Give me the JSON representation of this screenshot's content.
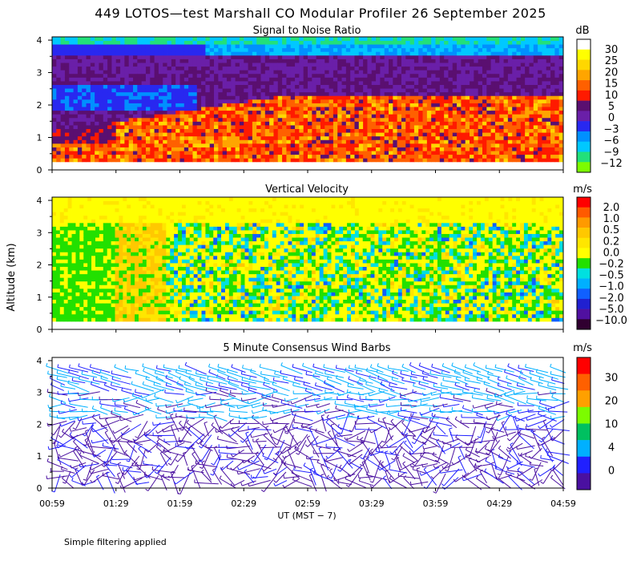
{
  "title": "449 LOTOS—test Marshall CO Modular Profiler 26 September 2025",
  "ylabel": "Altitude (km)",
  "xlabel": "UT  (MST − 7)",
  "footnote": "Simple filtering applied",
  "chart_data": [
    {
      "type": "heatmap",
      "title": "Signal to Noise Ratio",
      "unit": "dB",
      "x_ticks": [
        "00:59",
        "01:29",
        "01:59",
        "02:29",
        "02:59",
        "03:29",
        "03:59",
        "04:29",
        "04:59"
      ],
      "y_ticks": [
        "0",
        "1",
        "2",
        "3",
        "4"
      ],
      "ylim": [
        0,
        4.1
      ],
      "colorbar": {
        "labels": [
          "30",
          "25",
          "20",
          "15",
          "10",
          "5",
          "0",
          "−3",
          "−6",
          "−9",
          "−12"
        ],
        "colors": [
          "#ffffff",
          "#ffff00",
          "#ffd700",
          "#ffa500",
          "#ff6000",
          "#ff1a00",
          "#5a0f70",
          "#6a1fa8",
          "#2828f0",
          "#0090ff",
          "#00c8ff",
          "#22e07a",
          "#7cfc00"
        ]
      }
    },
    {
      "type": "heatmap",
      "title": "Vertical Velocity",
      "unit": "m/s",
      "x_ticks": [
        "00:59",
        "01:29",
        "01:59",
        "02:29",
        "02:59",
        "03:29",
        "03:59",
        "04:29",
        "04:59"
      ],
      "y_ticks": [
        "0",
        "1",
        "2",
        "3",
        "4"
      ],
      "ylim": [
        0,
        4.1
      ],
      "colorbar": {
        "labels": [
          "2.0",
          "1.0",
          "0.5",
          "0.2",
          "0.0",
          "−0.2",
          "−0.5",
          "−1.0",
          "−2.0",
          "−5.0",
          "−10.0"
        ],
        "colors": [
          "#ff0000",
          "#ff5a00",
          "#ff9a00",
          "#ffc800",
          "#ffe600",
          "#ffff00",
          "#22e000",
          "#00e0e0",
          "#00b0ff",
          "#1060ff",
          "#2020d0",
          "#5010a0",
          "#300030"
        ]
      }
    },
    {
      "type": "scatter",
      "title": "5 Minute Consensus Wind Barbs",
      "unit": "m/s",
      "x_ticks": [
        "00:59",
        "01:29",
        "01:59",
        "02:29",
        "02:59",
        "03:29",
        "03:59",
        "04:29",
        "04:59"
      ],
      "y_ticks": [
        "0",
        "1",
        "2",
        "3",
        "4"
      ],
      "ylim": [
        0,
        4.1
      ],
      "colorbar": {
        "labels": [
          "30",
          "20",
          "10",
          "4",
          "0"
        ],
        "colors": [
          "#ff0000",
          "#ff6000",
          "#ffa000",
          "#7cfc00",
          "#00c060",
          "#00b0ff",
          "#2020ff",
          "#4a10a0"
        ]
      }
    }
  ]
}
